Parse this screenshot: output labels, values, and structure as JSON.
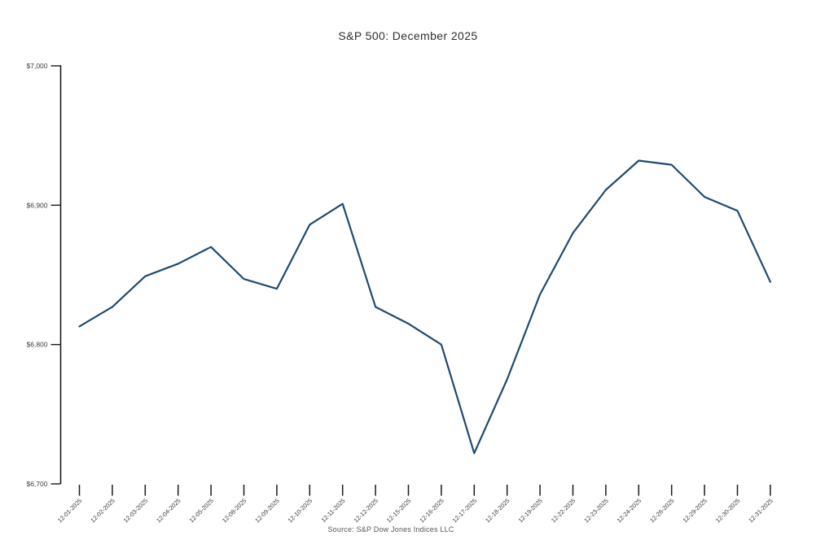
{
  "chart_data": {
    "type": "line",
    "title": "S&P 500: December 2025",
    "source": "Source: S&P Dow Jones Indices LLC",
    "x": [
      "12-01-2025",
      "12-02-2025",
      "12-03-2025",
      "12-04-2025",
      "12-05-2025",
      "12-08-2025",
      "12-09-2025",
      "12-10-2025",
      "12-11-2025",
      "12-12-2025",
      "12-15-2025",
      "12-16-2025",
      "12-17-2025",
      "12-18-2025",
      "12-19-2025",
      "12-22-2025",
      "12-23-2025",
      "12-24-2025",
      "12-26-2025",
      "12-29-2025",
      "12-30-2025",
      "12-31-2025"
    ],
    "series": [
      {
        "name": "S&P 500",
        "values": [
          6813,
          6827,
          6849,
          6858,
          6870,
          6847,
          6840,
          6886,
          6901,
          6827,
          6815,
          6800,
          6722,
          6775,
          6836,
          6880,
          6911,
          6932,
          6929,
          6906,
          6896,
          6845
        ]
      }
    ],
    "xlabel": "",
    "ylabel": "",
    "ylim": [
      6700,
      7000
    ],
    "ytick_interval": 100,
    "ytick_labels": [
      "$6,700",
      "$6,800",
      "$6,900",
      "$7,000"
    ],
    "grid": false,
    "legend_position": "none",
    "colors": {
      "line": "#1f4a70",
      "axis": "#1a1a1a",
      "tick_label": "#3d3d3d",
      "title": "#2e2e2e",
      "source": "#565656",
      "background": "#ffffff"
    }
  }
}
